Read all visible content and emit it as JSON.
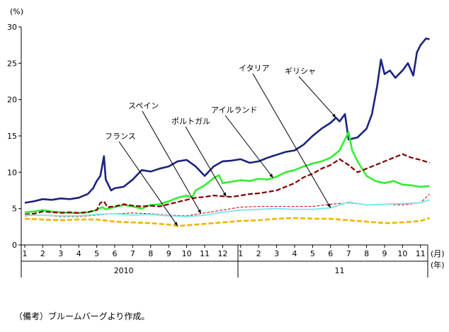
{
  "note": "（備考）ブルームバーグより作成。",
  "chart_data": {
    "type": "line",
    "ylabel": "(%)",
    "ylim": [
      0,
      30
    ],
    "yticks": [
      "0",
      "5",
      "10",
      "15",
      "20",
      "25",
      "30"
    ],
    "xlabel_month": "(月)",
    "xlabel_year": "(年)",
    "month_labels": [
      "1",
      "2",
      "3",
      "4",
      "5",
      "6",
      "7",
      "8",
      "9",
      "10",
      "11",
      "12",
      "1",
      "2",
      "3",
      "4",
      "5",
      "6",
      "7",
      "8",
      "9",
      "10",
      "11"
    ],
    "year_labels": [
      {
        "label": "2010",
        "month_index": 5.5
      },
      {
        "label": "11",
        "month_index": 17.5
      }
    ],
    "x_unit": "month index (0 = Jan 2010, 22 = Nov 2011)",
    "grid": false,
    "series": [
      {
        "name": "ギリシャ",
        "color": "#1a237e",
        "style": "solid",
        "width": 2.6,
        "points": [
          [
            0,
            5.8
          ],
          [
            0.5,
            6.0
          ],
          [
            1,
            6.3
          ],
          [
            1.5,
            6.2
          ],
          [
            2,
            6.4
          ],
          [
            2.5,
            6.3
          ],
          [
            3,
            6.5
          ],
          [
            3.5,
            7.0
          ],
          [
            3.8,
            7.8
          ],
          [
            4.0,
            8.8
          ],
          [
            4.2,
            9.5
          ],
          [
            4.4,
            12.2
          ],
          [
            4.5,
            9.0
          ],
          [
            4.8,
            7.5
          ],
          [
            5,
            7.8
          ],
          [
            5.5,
            8.0
          ],
          [
            6,
            9.0
          ],
          [
            6.5,
            10.3
          ],
          [
            7,
            10.1
          ],
          [
            7.5,
            10.5
          ],
          [
            8,
            10.8
          ],
          [
            8.5,
            11.5
          ],
          [
            9,
            11.7
          ],
          [
            9.5,
            10.8
          ],
          [
            10,
            9.5
          ],
          [
            10.5,
            10.8
          ],
          [
            11,
            11.5
          ],
          [
            11.5,
            11.6
          ],
          [
            12,
            11.8
          ],
          [
            12.5,
            11.3
          ],
          [
            13,
            11.5
          ],
          [
            13.5,
            12.0
          ],
          [
            14,
            12.4
          ],
          [
            14.5,
            12.8
          ],
          [
            15,
            13.0
          ],
          [
            15.5,
            13.8
          ],
          [
            16,
            15.0
          ],
          [
            16.5,
            16.0
          ],
          [
            17,
            16.8
          ],
          [
            17.3,
            17.5
          ],
          [
            17.5,
            17.0
          ],
          [
            17.8,
            18.0
          ],
          [
            18,
            14.5
          ],
          [
            18.5,
            14.8
          ],
          [
            19,
            16.0
          ],
          [
            19.3,
            18.0
          ],
          [
            19.6,
            22.0
          ],
          [
            19.8,
            25.5
          ],
          [
            20,
            23.5
          ],
          [
            20.3,
            24.0
          ],
          [
            20.6,
            23.0
          ],
          [
            21,
            24.0
          ],
          [
            21.3,
            25.0
          ],
          [
            21.6,
            23.3
          ],
          [
            21.8,
            26.5
          ],
          [
            22,
            27.5
          ],
          [
            22.3,
            28.4
          ],
          [
            22.5,
            28.3
          ]
        ]
      },
      {
        "name": "アイルランド",
        "color": "#33ee33",
        "style": "solid",
        "width": 2.6,
        "points": [
          [
            0,
            4.5
          ],
          [
            0.5,
            4.6
          ],
          [
            1,
            4.8
          ],
          [
            1.5,
            4.6
          ],
          [
            2,
            4.5
          ],
          [
            2.5,
            4.4
          ],
          [
            3,
            4.4
          ],
          [
            3.5,
            4.5
          ],
          [
            4,
            4.8
          ],
          [
            4.3,
            5.2
          ],
          [
            4.5,
            4.9
          ],
          [
            5,
            5.2
          ],
          [
            5.5,
            5.5
          ],
          [
            6,
            5.3
          ],
          [
            6.5,
            5.0
          ],
          [
            7,
            5.5
          ],
          [
            7.5,
            5.6
          ],
          [
            8,
            6.0
          ],
          [
            8.5,
            6.5
          ],
          [
            9,
            6.8
          ],
          [
            9.3,
            6.5
          ],
          [
            9.5,
            7.5
          ],
          [
            10,
            8.2
          ],
          [
            10.5,
            9.2
          ],
          [
            10.8,
            9.6
          ],
          [
            11,
            8.5
          ],
          [
            11.5,
            8.7
          ],
          [
            12,
            8.9
          ],
          [
            12.5,
            8.8
          ],
          [
            13,
            9.1
          ],
          [
            13.5,
            9.0
          ],
          [
            14,
            9.4
          ],
          [
            14.5,
            10.0
          ],
          [
            15,
            10.3
          ],
          [
            15.5,
            10.8
          ],
          [
            16,
            11.2
          ],
          [
            16.5,
            11.5
          ],
          [
            17,
            12.0
          ],
          [
            17.5,
            13.0
          ],
          [
            17.8,
            14.5
          ],
          [
            18,
            15.5
          ],
          [
            18.2,
            13.0
          ],
          [
            18.5,
            11.5
          ],
          [
            19,
            9.5
          ],
          [
            19.5,
            8.8
          ],
          [
            20,
            8.5
          ],
          [
            20.5,
            8.8
          ],
          [
            21,
            8.3
          ],
          [
            21.5,
            8.2
          ],
          [
            22,
            8.0
          ],
          [
            22.5,
            8.1
          ]
        ]
      },
      {
        "name": "ポルトガル",
        "color": "#800000",
        "style": "dashed",
        "width": 2.2,
        "points": [
          [
            0,
            4.2
          ],
          [
            0.5,
            4.3
          ],
          [
            1,
            4.6
          ],
          [
            1.5,
            4.5
          ],
          [
            2,
            4.4
          ],
          [
            2.5,
            4.5
          ],
          [
            3,
            4.4
          ],
          [
            3.5,
            4.5
          ],
          [
            4,
            4.8
          ],
          [
            4.2,
            5.8
          ],
          [
            4.4,
            6.0
          ],
          [
            4.6,
            5.2
          ],
          [
            5,
            5.3
          ],
          [
            5.5,
            5.6
          ],
          [
            6,
            5.4
          ],
          [
            6.5,
            5.3
          ],
          [
            7,
            5.4
          ],
          [
            7.5,
            5.3
          ],
          [
            8,
            5.6
          ],
          [
            8.5,
            5.9
          ],
          [
            9,
            6.2
          ],
          [
            9.5,
            6.5
          ],
          [
            10,
            6.6
          ],
          [
            10.5,
            6.8
          ],
          [
            11,
            6.7
          ],
          [
            11.5,
            6.6
          ],
          [
            12,
            6.8
          ],
          [
            12.5,
            7.0
          ],
          [
            13,
            7.1
          ],
          [
            13.5,
            7.3
          ],
          [
            14,
            7.5
          ],
          [
            14.5,
            8.0
          ],
          [
            15,
            8.5
          ],
          [
            15.5,
            9.3
          ],
          [
            16,
            9.8
          ],
          [
            16.5,
            10.5
          ],
          [
            17,
            11.0
          ],
          [
            17.5,
            11.8
          ],
          [
            18,
            11.0
          ],
          [
            18.5,
            10.0
          ],
          [
            19,
            10.5
          ],
          [
            19.5,
            11.0
          ],
          [
            20,
            11.5
          ],
          [
            20.5,
            12.0
          ],
          [
            21,
            12.5
          ],
          [
            21.5,
            12.0
          ],
          [
            22,
            11.7
          ],
          [
            22.5,
            11.3
          ]
        ]
      },
      {
        "name": "スペイン",
        "color": "#c00000",
        "style": "thin-dashed",
        "width": 1.0,
        "points": [
          [
            0,
            4.0
          ],
          [
            1,
            4.1
          ],
          [
            2,
            3.9
          ],
          [
            3,
            3.9
          ],
          [
            4,
            4.1
          ],
          [
            5,
            4.3
          ],
          [
            6,
            4.4
          ],
          [
            7,
            4.3
          ],
          [
            8,
            4.1
          ],
          [
            9,
            4.0
          ],
          [
            10,
            4.4
          ],
          [
            11,
            4.8
          ],
          [
            12,
            5.2
          ],
          [
            13,
            5.3
          ],
          [
            14,
            5.3
          ],
          [
            15,
            5.3
          ],
          [
            16,
            5.3
          ],
          [
            17,
            5.6
          ],
          [
            18,
            5.8
          ],
          [
            19,
            5.5
          ],
          [
            20,
            5.6
          ],
          [
            21,
            5.5
          ],
          [
            22,
            5.8
          ],
          [
            22.5,
            7.0
          ]
        ]
      },
      {
        "name": "フランス",
        "color": "#f0b400",
        "style": "dashed",
        "width": 2.6,
        "points": [
          [
            0,
            3.6
          ],
          [
            1,
            3.5
          ],
          [
            2,
            3.4
          ],
          [
            3,
            3.5
          ],
          [
            4,
            3.5
          ],
          [
            5,
            3.2
          ],
          [
            6,
            3.1
          ],
          [
            7,
            3.0
          ],
          [
            8,
            2.8
          ],
          [
            8.5,
            2.6
          ],
          [
            9,
            2.7
          ],
          [
            10,
            2.9
          ],
          [
            11,
            3.1
          ],
          [
            12,
            3.3
          ],
          [
            13,
            3.4
          ],
          [
            14,
            3.6
          ],
          [
            15,
            3.7
          ],
          [
            16,
            3.6
          ],
          [
            17,
            3.6
          ],
          [
            18,
            3.4
          ],
          [
            19,
            3.2
          ],
          [
            20,
            3.0
          ],
          [
            21,
            3.1
          ],
          [
            22,
            3.3
          ],
          [
            22.5,
            3.7
          ]
        ]
      },
      {
        "name": "イタリア",
        "color": "#80e8ee",
        "style": "solid",
        "width": 2.0,
        "points": [
          [
            0,
            4.1
          ],
          [
            1,
            4.1
          ],
          [
            2,
            4.0
          ],
          [
            3,
            4.0
          ],
          [
            4,
            4.2
          ],
          [
            5,
            4.3
          ],
          [
            6,
            4.1
          ],
          [
            7,
            4.2
          ],
          [
            8,
            4.0
          ],
          [
            9,
            3.9
          ],
          [
            10,
            4.1
          ],
          [
            11,
            4.5
          ],
          [
            12,
            4.8
          ],
          [
            13,
            4.9
          ],
          [
            14,
            5.0
          ],
          [
            15,
            4.9
          ],
          [
            16,
            4.9
          ],
          [
            17,
            5.1
          ],
          [
            18,
            5.9
          ],
          [
            19,
            5.5
          ],
          [
            20,
            5.6
          ],
          [
            21,
            5.7
          ],
          [
            22,
            5.8
          ],
          [
            22.5,
            6.2
          ]
        ]
      }
    ],
    "annotations": [
      {
        "label": "ギリシャ",
        "target_series": 0,
        "target_x": 17.3
      },
      {
        "label": "イタリア",
        "target_series": 5,
        "target_x": 17.0
      },
      {
        "label": "スペイン",
        "target_series": 3,
        "target_x": 9.8
      },
      {
        "label": "ポルトガル",
        "target_series": 2,
        "target_x": 11.2
      },
      {
        "label": "アイルランド",
        "target_series": 1,
        "target_x": 13.8
      },
      {
        "label": "フランス",
        "target_series": 4,
        "target_x": 8.5
      }
    ]
  }
}
